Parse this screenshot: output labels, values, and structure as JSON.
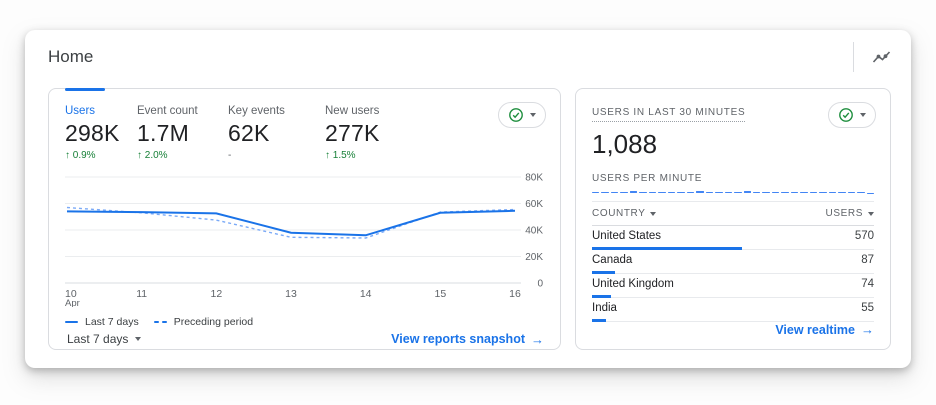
{
  "page": {
    "title": "Home"
  },
  "icons": {
    "arrow_right": "→",
    "up_arrow": "↑",
    "insights": "insights-sparkline",
    "check": "check-circle"
  },
  "colors": {
    "accent": "#1a73e8",
    "dashed_line": "#7baaf7",
    "bar": "#4285f4",
    "positive": "#188038",
    "border": "#dadce0",
    "grid_line": "#ebedef",
    "text_primary": "#202124",
    "text_secondary": "#5f6368",
    "check_green": "#1e8e3e"
  },
  "overview_card": {
    "metrics": [
      {
        "label": "Users",
        "value": "298K",
        "change": "0.9%",
        "direction": "up",
        "selected": true
      },
      {
        "label": "Event count",
        "value": "1.7M",
        "change": "2.0%",
        "direction": "up",
        "selected": false
      },
      {
        "label": "Key events",
        "value": "62K",
        "change": "-",
        "direction": "none",
        "selected": false
      },
      {
        "label": "New users",
        "value": "277K",
        "change": "1.5%",
        "direction": "up",
        "selected": false
      }
    ],
    "range_label": "Last 7 days",
    "snapshot_link_label": "View reports snapshot"
  },
  "realtime_card": {
    "title": "USERS IN LAST 30 MINUTES",
    "value": "1,088",
    "per_minute_label": "USERS PER MINUTE",
    "table": {
      "country_header": "COUNTRY",
      "users_header": "USERS",
      "rows": [
        {
          "country": "United States",
          "users": 570
        },
        {
          "country": "Canada",
          "users": 87
        },
        {
          "country": "United Kingdom",
          "users": 74
        },
        {
          "country": "India",
          "users": 55
        }
      ]
    },
    "realtime_link_label": "View realtime"
  },
  "chart_data": [
    {
      "id": "users-trend",
      "type": "line",
      "x": [
        "10",
        "11",
        "12",
        "13",
        "14",
        "15",
        "16"
      ],
      "x_axis_sublabel": "Apr",
      "series": [
        {
          "name": "Last 7 days",
          "style": "solid",
          "values": [
            54000,
            53500,
            52500,
            38000,
            36000,
            53000,
            54500
          ]
        },
        {
          "name": "Preceding period",
          "style": "dashed",
          "values": [
            57000,
            53000,
            47500,
            34500,
            34000,
            53500,
            55500
          ]
        }
      ],
      "ylim": [
        0,
        80000
      ],
      "yticks": [
        {
          "value": 80000,
          "label": "80K"
        },
        {
          "value": 60000,
          "label": "60K"
        },
        {
          "value": 40000,
          "label": "40K"
        },
        {
          "value": 20000,
          "label": "20K"
        },
        {
          "value": 0,
          "label": "0"
        }
      ],
      "grid": true,
      "legend_position": "bottom-left"
    },
    {
      "id": "users-per-minute",
      "type": "bar",
      "title": "USERS PER MINUTE",
      "values": [
        42,
        30,
        34,
        46,
        92,
        50,
        40,
        34,
        46,
        38,
        44,
        90,
        48,
        42,
        42,
        38,
        82,
        34,
        50,
        46,
        40,
        48,
        66,
        46,
        36,
        44,
        58,
        54,
        46,
        12
      ],
      "ylim": [
        0,
        100
      ]
    }
  ]
}
